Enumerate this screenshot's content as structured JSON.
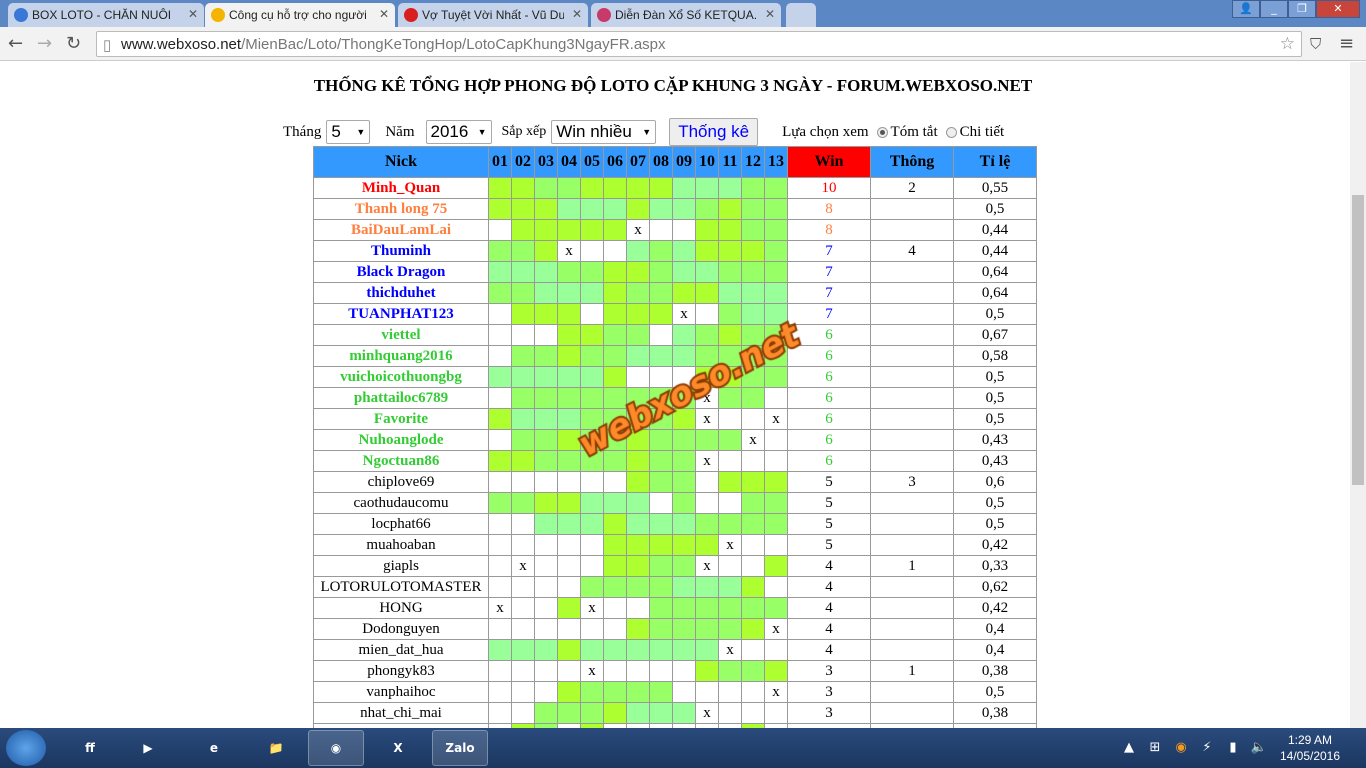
{
  "browser": {
    "tabs": [
      {
        "label": "BOX LOTO - CHĂN NUÔI",
        "icon": "loading-icon",
        "color": "#3a78d8"
      },
      {
        "label": "Công cụ hỗ trợ cho người",
        "icon": "xs-icon",
        "color": "#f5b400",
        "active": true
      },
      {
        "label": "Vợ Tuyệt Vời Nhất - Vũ Du",
        "icon": "youtube-icon",
        "color": "#d92020"
      },
      {
        "label": "Diễn Đàn Xổ Số KETQUA.N",
        "icon": "forum-icon",
        "color": "#c83a6a"
      }
    ],
    "url_domain": "www.webxoso.net",
    "url_path": "/MienBac/Loto/ThongKeTongHop/LotoCapKhung3NgayFR.aspx"
  },
  "page": {
    "title": "THỐNG KÊ TỔNG HỢP PHONG ĐỘ LOTO CẶP KHUNG 3 NGÀY - FORUM.WEBXOSO.NET",
    "filters": {
      "month_label": "Tháng",
      "month": "5",
      "year_label": "Năm",
      "year": "2016",
      "sort_label": "Sắp xếp",
      "sort": "Win nhiều",
      "submit": "Thống kê",
      "view_label": "Lựa chọn xem",
      "view_summary": "Tóm tắt",
      "view_detail": "Chi tiết",
      "selected_view": "summary"
    },
    "watermark": "webxoso.net"
  },
  "table": {
    "headers": {
      "nick": "Nick",
      "days": [
        "01",
        "02",
        "03",
        "04",
        "05",
        "06",
        "07",
        "08",
        "09",
        "10",
        "11",
        "12",
        "13"
      ],
      "win": "Win",
      "thong": "Thông",
      "ratio": "Tỉ lệ"
    },
    "palette": {
      "A": "#adff2f",
      "B": "#99ff66",
      "C": "#99ff99",
      "W": "#ffffff",
      "X": "#ffffff"
    },
    "tier_colors": {
      "10": "#ff0000",
      "8": "#ff7f3f",
      "7": "#0000ff",
      "6": "#33cc33",
      "other": "#000000"
    },
    "miss_mark": "x",
    "rows": [
      {
        "nick": "Minh_Quan",
        "cells": "AABBAAAACCCBB",
        "win": "10",
        "thong": "2",
        "ratio": "0,55"
      },
      {
        "nick": "Thanh long 75",
        "cells": "AAACCCACCBABB",
        "win": "8",
        "thong": "",
        "ratio": "0,5"
      },
      {
        "nick": "BaiDauLamLai",
        "cells": "WAAAAAXWWAABB",
        "win": "8",
        "thong": "",
        "ratio": "0,44"
      },
      {
        "nick": "Thuminh",
        "cells": "BBAXWWCBCAAAB",
        "win": "7",
        "thong": "4",
        "ratio": "0,44"
      },
      {
        "nick": "Black Dragon",
        "cells": "CCCBBAABCCBBB",
        "win": "7",
        "thong": "",
        "ratio": "0,64"
      },
      {
        "nick": "thichduhet",
        "cells": "BBCCCABBAACCC",
        "win": "7",
        "thong": "",
        "ratio": "0,64"
      },
      {
        "nick": "TUANPHAT123",
        "cells": "WAAAWAAAXWBCC",
        "win": "7",
        "thong": "",
        "ratio": "0,5"
      },
      {
        "nick": "viettel",
        "cells": "WWWAABBWCBABB",
        "win": "6",
        "thong": "",
        "ratio": "0,67"
      },
      {
        "nick": "minhquang2016",
        "cells": "WBBABBCCCBBBB",
        "win": "6",
        "thong": "",
        "ratio": "0,58"
      },
      {
        "nick": "vuichoicothuongbg",
        "cells": "CCCCCAWWWAABB",
        "win": "6",
        "thong": "",
        "ratio": "0,5"
      },
      {
        "nick": "phattailoc6789",
        "cells": "WBBBBBBBBXBBW",
        "win": "6",
        "thong": "",
        "ratio": "0,5"
      },
      {
        "nick": "Favorite",
        "cells": "ACCCBBBBAXWWX",
        "win": "6",
        "thong": "",
        "ratio": "0,5"
      },
      {
        "nick": "Nuhoanglode",
        "cells": "WBBABBABBBBXW",
        "win": "6",
        "thong": "",
        "ratio": "0,43"
      },
      {
        "nick": "Ngoctuan86",
        "cells": "AABBBBABBXWWW",
        "win": "6",
        "thong": "",
        "ratio": "0,43"
      },
      {
        "nick": "chiplove69",
        "cells": "WWWWWWABBWAAA",
        "win": "5",
        "thong": "3",
        "ratio": "0,6"
      },
      {
        "nick": "caothudaucomu",
        "cells": "BBAACCCWBWWBB",
        "win": "5",
        "thong": "",
        "ratio": "0,5"
      },
      {
        "nick": "locphat66",
        "cells": "WWCCCACCCBBBB",
        "win": "5",
        "thong": "",
        "ratio": "0,5"
      },
      {
        "nick": "muahoaban",
        "cells": "WWWWWAAAAAXWW",
        "win": "5",
        "thong": "",
        "ratio": "0,42"
      },
      {
        "nick": "giapls",
        "cells": "WXWWWAABBXWWA",
        "win": "4",
        "thong": "1",
        "ratio": "0,33"
      },
      {
        "nick": "LOTORULOTOMASTER",
        "cells": "WWWWBBBBCCCAW",
        "win": "4",
        "thong": "",
        "ratio": "0,62"
      },
      {
        "nick": "HONG",
        "cells": "XWWAXWWBBBBBB",
        "win": "4",
        "thong": "",
        "ratio": "0,42"
      },
      {
        "nick": "Dodonguyen",
        "cells": "WWWWWWABBBBAX",
        "win": "4",
        "thong": "",
        "ratio": "0,4"
      },
      {
        "nick": "mien_dat_hua",
        "cells": "CCCACCCCCCXWW",
        "win": "4",
        "thong": "",
        "ratio": "0,4"
      },
      {
        "nick": "phongyk83",
        "cells": "WWWWXWWWWABBA",
        "win": "3",
        "thong": "1",
        "ratio": "0,38"
      },
      {
        "nick": "vanphaihoc",
        "cells": "WWWABBBBWWWWX",
        "win": "3",
        "thong": "",
        "ratio": "0,5"
      },
      {
        "nick": "nhat_chi_mai",
        "cells": "WWBBBACCCXWWW",
        "win": "3",
        "thong": "",
        "ratio": "0,38"
      },
      {
        "nick": "",
        "cells": "WABWAWWWWWWAW",
        "win": "",
        "thong": "",
        "ratio": ""
      }
    ]
  },
  "taskbar": {
    "apps": [
      {
        "name": "start-button",
        "label": ""
      },
      {
        "name": "firefox",
        "label": "ff"
      },
      {
        "name": "media-player",
        "label": "▶"
      },
      {
        "name": "internet-explorer",
        "label": "e"
      },
      {
        "name": "file-explorer",
        "label": "📁"
      },
      {
        "name": "chrome",
        "label": "◉",
        "open": true
      },
      {
        "name": "excel",
        "label": "X"
      },
      {
        "name": "zalo",
        "label": "Zalo",
        "open": true
      }
    ],
    "time": "1:29 AM",
    "date": "14/05/2016"
  }
}
